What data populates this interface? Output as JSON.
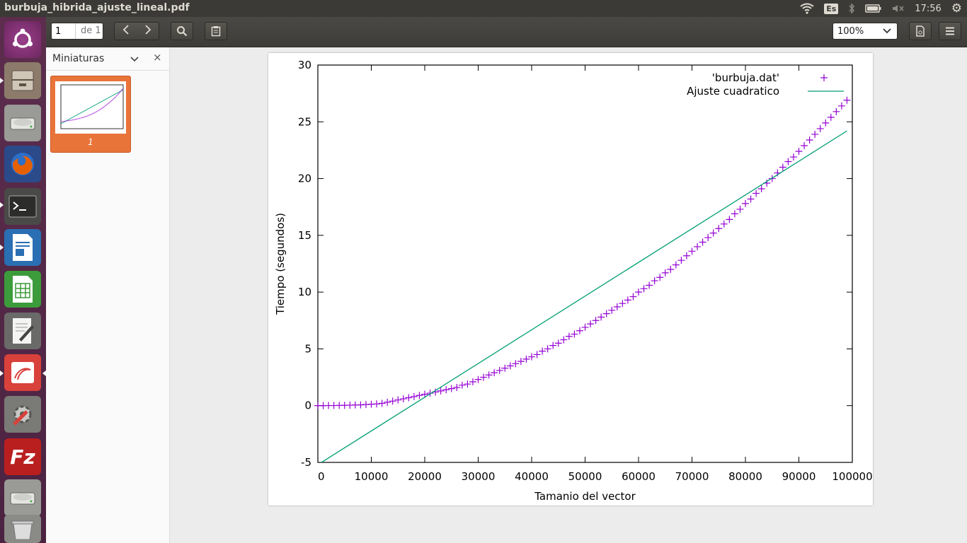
{
  "window": {
    "title": "burbuja_hibrida_ajuste_lineal.pdf"
  },
  "system": {
    "keyboard": "Es",
    "time": "17:56"
  },
  "launcher": {
    "items": [
      {
        "name": "ubuntu-dash-icon"
      },
      {
        "name": "files-icon"
      },
      {
        "name": "drive-icon"
      },
      {
        "name": "firefox-icon"
      },
      {
        "name": "terminal-icon"
      },
      {
        "name": "writer-icon"
      },
      {
        "name": "calc-icon"
      },
      {
        "name": "text-editor-icon"
      },
      {
        "name": "document-viewer-icon"
      },
      {
        "name": "system-settings-icon"
      },
      {
        "name": "filezilla-icon",
        "label": "Fz"
      },
      {
        "name": "drive-icon-2"
      },
      {
        "name": "trash-icon"
      }
    ]
  },
  "toolbar": {
    "page_current": "1",
    "page_of": "de 1",
    "zoom": "100%"
  },
  "sidebar": {
    "title": "Miniaturas",
    "thumb_label": "1"
  },
  "chart_data": {
    "type": "scatter",
    "xlabel": "Tamanio del vector",
    "ylabel": "Tiempo (segundos)",
    "xlim": [
      0,
      100000
    ],
    "ylim": [
      -5,
      30
    ],
    "x_ticks": [
      "0",
      "10000",
      "20000",
      "30000",
      "40000",
      "50000",
      "60000",
      "70000",
      "80000",
      "90000",
      "100000"
    ],
    "y_ticks": [
      "-5",
      "0",
      "5",
      "10",
      "15",
      "20",
      "25",
      "30"
    ],
    "grid": false,
    "legend": "top-right",
    "series": [
      {
        "name": "'burbuja.dat'",
        "style": "points-plus",
        "color": "#9400d3",
        "x": [
          0,
          1000,
          2000,
          3000,
          4000,
          5000,
          6000,
          7000,
          8000,
          9000,
          10000,
          11000,
          12000,
          13000,
          14000,
          15000,
          16000,
          17000,
          18000,
          19000,
          20000,
          21000,
          22000,
          23000,
          24000,
          25000,
          26000,
          27000,
          28000,
          29000,
          30000,
          31000,
          32000,
          33000,
          34000,
          35000,
          36000,
          37000,
          38000,
          39000,
          40000,
          41000,
          42000,
          43000,
          44000,
          45000,
          46000,
          47000,
          48000,
          49000,
          50000,
          51000,
          52000,
          53000,
          54000,
          55000,
          56000,
          57000,
          58000,
          59000,
          60000,
          61000,
          62000,
          63000,
          64000,
          65000,
          66000,
          67000,
          68000,
          69000,
          70000,
          71000,
          72000,
          73000,
          74000,
          75000,
          76000,
          77000,
          78000,
          79000,
          80000,
          81000,
          82000,
          83000,
          84000,
          85000,
          86000,
          87000,
          88000,
          89000,
          90000,
          91000,
          92000,
          93000,
          94000,
          95000,
          96000,
          97000,
          98000,
          99000
        ],
        "y": [
          0,
          0,
          0.01,
          0.01,
          0.02,
          0.03,
          0.04,
          0.06,
          0.07,
          0.1,
          0.12,
          0.15,
          0.2,
          0.3,
          0.4,
          0.5,
          0.6,
          0.7,
          0.8,
          0.9,
          1.0,
          1.1,
          1.2,
          1.3,
          1.4,
          1.5,
          1.6,
          1.8,
          1.9,
          2.1,
          2.3,
          2.5,
          2.7,
          2.9,
          3.1,
          3.3,
          3.5,
          3.7,
          3.9,
          4.1,
          4.3,
          4.5,
          4.8,
          5.0,
          5.3,
          5.5,
          5.8,
          6.1,
          6.3,
          6.6,
          6.9,
          7.2,
          7.5,
          7.8,
          8.1,
          8.4,
          8.7,
          9.0,
          9.3,
          9.6,
          10.0,
          10.3,
          10.6,
          11.0,
          11.3,
          11.7,
          12.0,
          12.4,
          12.8,
          13.2,
          13.6,
          14.0,
          14.4,
          14.8,
          15.2,
          15.6,
          16.0,
          16.4,
          16.9,
          17.3,
          17.8,
          18.2,
          18.7,
          19.1,
          19.6,
          20.0,
          20.5,
          21.0,
          21.5,
          21.9,
          22.4,
          22.9,
          23.4,
          23.9,
          24.4,
          24.9,
          25.4,
          25.9,
          26.4,
          26.9
        ]
      },
      {
        "name": "Ajuste cuadratico",
        "style": "line",
        "color": "#009e73",
        "x": [
          0,
          99000
        ],
        "y": [
          -5.2,
          24.2
        ]
      }
    ]
  }
}
